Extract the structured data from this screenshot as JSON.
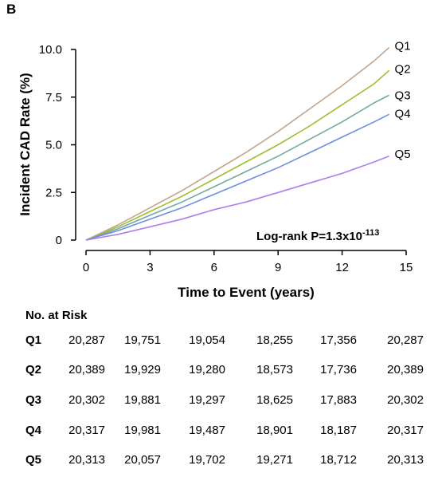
{
  "panel_label": "B",
  "chart_data": {
    "type": "line",
    "ylabel": "Incident CAD Rate (%)",
    "xlabel": "Time to Event (years)",
    "xlim": [
      0,
      15
    ],
    "ylim": [
      0,
      10
    ],
    "x_ticks": [
      "0",
      "3",
      "6",
      "9",
      "12",
      "15"
    ],
    "y_ticks": [
      "0",
      "2.5",
      "5.0",
      "7.5",
      "10.0"
    ],
    "grid": false,
    "legend": "line-end labels",
    "annotation": "Log-rank P=1.3x10",
    "annotation_exponent": "-113",
    "x": [
      0,
      1.5,
      3,
      4.5,
      6,
      7.5,
      9,
      10.5,
      12,
      13.5,
      14.2
    ],
    "series": [
      {
        "name": "Q1",
        "color": "#c4a48c",
        "values": [
          0,
          0.8,
          1.7,
          2.6,
          3.6,
          4.6,
          5.7,
          6.9,
          8.1,
          9.4,
          10.1
        ]
      },
      {
        "name": "Q2",
        "color": "#a2bd33",
        "values": [
          0,
          0.7,
          1.5,
          2.3,
          3.2,
          4.1,
          5.0,
          6.0,
          7.1,
          8.2,
          8.9
        ]
      },
      {
        "name": "Q3",
        "color": "#73a9a4",
        "values": [
          0,
          0.6,
          1.3,
          2.0,
          2.8,
          3.6,
          4.4,
          5.3,
          6.2,
          7.2,
          7.6
        ]
      },
      {
        "name": "Q4",
        "color": "#6f8ee0",
        "values": [
          0,
          0.5,
          1.1,
          1.7,
          2.4,
          3.1,
          3.8,
          4.6,
          5.4,
          6.2,
          6.6
        ]
      },
      {
        "name": "Q5",
        "color": "#b07ee8",
        "values": [
          0,
          0.3,
          0.7,
          1.1,
          1.6,
          2.0,
          2.5,
          3.0,
          3.5,
          4.1,
          4.4
        ]
      }
    ]
  },
  "risk_table": {
    "title": "No. at Risk",
    "rows": [
      {
        "label": "Q1",
        "values": [
          "20,287",
          "19,751",
          "19,054",
          "18,255",
          "17,356",
          "20,287"
        ]
      },
      {
        "label": "Q2",
        "values": [
          "20,389",
          "19,929",
          "19,280",
          "18,573",
          "17,736",
          "20,389"
        ]
      },
      {
        "label": "Q3",
        "values": [
          "20,302",
          "19,881",
          "19,297",
          "18,625",
          "17,883",
          "20,302"
        ]
      },
      {
        "label": "Q4",
        "values": [
          "20,317",
          "19,981",
          "19,487",
          "18,901",
          "18,187",
          "20,317"
        ]
      },
      {
        "label": "Q5",
        "values": [
          "20,313",
          "20,057",
          "19,702",
          "19,271",
          "18,712",
          "20,313"
        ]
      }
    ]
  }
}
